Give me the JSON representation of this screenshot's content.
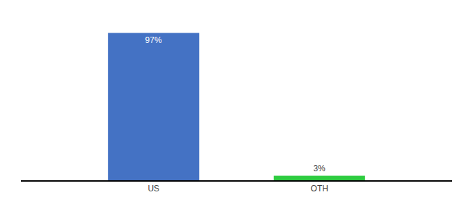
{
  "chart_data": {
    "type": "bar",
    "categories": [
      "US",
      "OTH"
    ],
    "values": [
      97,
      3
    ],
    "value_labels": [
      "97%",
      "3%"
    ],
    "colors": [
      "#4472c4",
      "#2ecc40"
    ],
    "ylim": [
      0,
      105
    ],
    "data_labels": true,
    "tick_labels": "x",
    "grid": false
  }
}
